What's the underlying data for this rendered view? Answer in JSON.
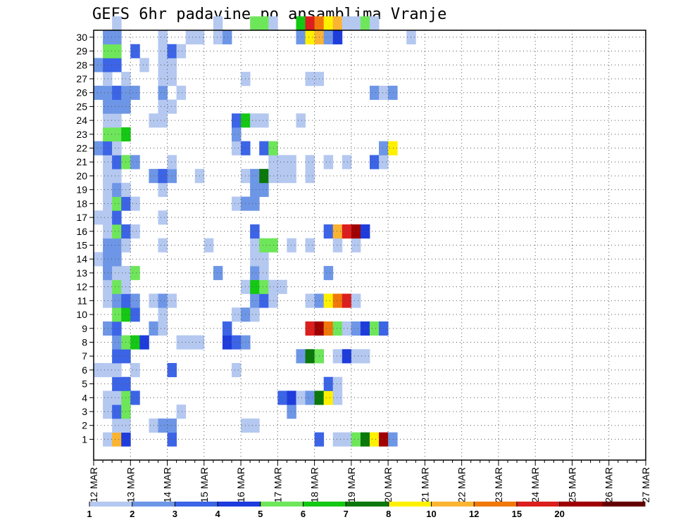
{
  "chart_data": {
    "type": "heatmap",
    "title": "GEFS 6hr padavine po ansamblima Vranje",
    "members": [
      1,
      2,
      3,
      4,
      5,
      6,
      7,
      8,
      9,
      10,
      11,
      12,
      13,
      14,
      15,
      16,
      17,
      18,
      19,
      20,
      21,
      22,
      23,
      24,
      25,
      26,
      27,
      28,
      29,
      30
    ],
    "x_tick_labels": [
      "12 MAR",
      "13 MAR",
      "14 MAR",
      "15 MAR",
      "16 MAR",
      "17 MAR",
      "18 MAR",
      "19 MAR",
      "20 MAR",
      "21 MAR",
      "22 MAR",
      "23 MAR",
      "24 MAR",
      "25 MAR",
      "26 MAR",
      "27 MAR"
    ],
    "steps_per_day": 4,
    "colorbar": {
      "levels": [
        "1",
        "2",
        "3",
        "4",
        "5",
        "6",
        "7",
        "8",
        "10",
        "12",
        "15",
        "20"
      ],
      "colors": [
        "#b4c8f0",
        "#6e96e6",
        "#3c64e6",
        "#1e3cdc",
        "#6ee65a",
        "#14c814",
        "#0a780a",
        "#fff000",
        "#fab432",
        "#f0780a",
        "#dc1e1e",
        "#a00000",
        "#640000"
      ]
    },
    "cells": [
      [
        1,
        1,
        1
      ],
      [
        1,
        2,
        9
      ],
      [
        1,
        3,
        4
      ],
      [
        1,
        8,
        3
      ],
      [
        1,
        24,
        3
      ],
      [
        1,
        26,
        1
      ],
      [
        1,
        27,
        1
      ],
      [
        1,
        28,
        5
      ],
      [
        1,
        29,
        7
      ],
      [
        1,
        30,
        8
      ],
      [
        1,
        31,
        12
      ],
      [
        1,
        32,
        2
      ],
      [
        2,
        2,
        1
      ],
      [
        2,
        3,
        1
      ],
      [
        2,
        6,
        1
      ],
      [
        2,
        7,
        2
      ],
      [
        2,
        8,
        2
      ],
      [
        2,
        16,
        1
      ],
      [
        2,
        17,
        1
      ],
      [
        3,
        1,
        1
      ],
      [
        3,
        2,
        3
      ],
      [
        3,
        3,
        5
      ],
      [
        3,
        9,
        1
      ],
      [
        3,
        21,
        2
      ],
      [
        4,
        1,
        1
      ],
      [
        4,
        2,
        1
      ],
      [
        4,
        3,
        5
      ],
      [
        4,
        4,
        3
      ],
      [
        4,
        20,
        3
      ],
      [
        4,
        21,
        4
      ],
      [
        4,
        22,
        1
      ],
      [
        4,
        23,
        2
      ],
      [
        4,
        24,
        7
      ],
      [
        4,
        25,
        8
      ],
      [
        4,
        26,
        1
      ],
      [
        5,
        2,
        3
      ],
      [
        5,
        3,
        3
      ],
      [
        5,
        25,
        3
      ],
      [
        5,
        26,
        1
      ],
      [
        6,
        0,
        1
      ],
      [
        6,
        1,
        1
      ],
      [
        6,
        2,
        1
      ],
      [
        6,
        4,
        1
      ],
      [
        6,
        8,
        3
      ],
      [
        6,
        15,
        1
      ],
      [
        7,
        2,
        3
      ],
      [
        7,
        3,
        3
      ],
      [
        7,
        22,
        2
      ],
      [
        7,
        23,
        7
      ],
      [
        7,
        24,
        5
      ],
      [
        7,
        26,
        1
      ],
      [
        7,
        27,
        4
      ],
      [
        7,
        28,
        1
      ],
      [
        7,
        29,
        1
      ],
      [
        8,
        2,
        2
      ],
      [
        8,
        3,
        5
      ],
      [
        8,
        4,
        6
      ],
      [
        8,
        5,
        4
      ],
      [
        8,
        9,
        1
      ],
      [
        8,
        10,
        1
      ],
      [
        8,
        11,
        1
      ],
      [
        8,
        14,
        4
      ],
      [
        8,
        15,
        3
      ],
      [
        8,
        16,
        2
      ],
      [
        9,
        1,
        2
      ],
      [
        9,
        2,
        3
      ],
      [
        9,
        6,
        2
      ],
      [
        9,
        7,
        1
      ],
      [
        9,
        14,
        3
      ],
      [
        9,
        23,
        11
      ],
      [
        9,
        24,
        12
      ],
      [
        9,
        25,
        10
      ],
      [
        9,
        26,
        5
      ],
      [
        9,
        27,
        1
      ],
      [
        9,
        28,
        2
      ],
      [
        9,
        29,
        4
      ],
      [
        9,
        30,
        5
      ],
      [
        9,
        31,
        3
      ],
      [
        10,
        2,
        5
      ],
      [
        10,
        3,
        6
      ],
      [
        10,
        4,
        3
      ],
      [
        10,
        7,
        1
      ],
      [
        10,
        15,
        1
      ],
      [
        10,
        16,
        2
      ],
      [
        10,
        17,
        1
      ],
      [
        11,
        1,
        1
      ],
      [
        11,
        2,
        2
      ],
      [
        11,
        3,
        3
      ],
      [
        11,
        4,
        2
      ],
      [
        11,
        6,
        1
      ],
      [
        11,
        7,
        2
      ],
      [
        11,
        8,
        1
      ],
      [
        11,
        17,
        2
      ],
      [
        11,
        18,
        3
      ],
      [
        11,
        19,
        1
      ],
      [
        11,
        23,
        1
      ],
      [
        11,
        24,
        2
      ],
      [
        11,
        25,
        8
      ],
      [
        11,
        26,
        10
      ],
      [
        11,
        27,
        11
      ],
      [
        11,
        28,
        1
      ],
      [
        12,
        1,
        1
      ],
      [
        12,
        2,
        5
      ],
      [
        12,
        3,
        1
      ],
      [
        12,
        16,
        1
      ],
      [
        12,
        17,
        6
      ],
      [
        12,
        18,
        5
      ],
      [
        12,
        19,
        1
      ],
      [
        12,
        20,
        1
      ],
      [
        13,
        1,
        2
      ],
      [
        13,
        2,
        1
      ],
      [
        13,
        3,
        1
      ],
      [
        13,
        4,
        5
      ],
      [
        13,
        13,
        2
      ],
      [
        13,
        17,
        2
      ],
      [
        13,
        18,
        1
      ],
      [
        13,
        25,
        2
      ],
      [
        14,
        0,
        1
      ],
      [
        14,
        1,
        2
      ],
      [
        14,
        2,
        2
      ],
      [
        14,
        17,
        1
      ],
      [
        14,
        18,
        1
      ],
      [
        15,
        1,
        2
      ],
      [
        15,
        2,
        2
      ],
      [
        15,
        3,
        1
      ],
      [
        15,
        7,
        1
      ],
      [
        15,
        12,
        1
      ],
      [
        15,
        17,
        1
      ],
      [
        15,
        18,
        5
      ],
      [
        15,
        19,
        5
      ],
      [
        15,
        21,
        1
      ],
      [
        15,
        23,
        1
      ],
      [
        15,
        26,
        1
      ],
      [
        15,
        28,
        1
      ],
      [
        16,
        1,
        1
      ],
      [
        16,
        2,
        5
      ],
      [
        16,
        3,
        3
      ],
      [
        16,
        4,
        1
      ],
      [
        16,
        17,
        3
      ],
      [
        16,
        25,
        3
      ],
      [
        16,
        26,
        9
      ],
      [
        16,
        27,
        11
      ],
      [
        16,
        28,
        12
      ],
      [
        16,
        29,
        4
      ],
      [
        17,
        0,
        1
      ],
      [
        17,
        1,
        1
      ],
      [
        17,
        2,
        3
      ],
      [
        17,
        7,
        1
      ],
      [
        18,
        1,
        1
      ],
      [
        18,
        2,
        5
      ],
      [
        18,
        3,
        3
      ],
      [
        18,
        4,
        1
      ],
      [
        18,
        15,
        1
      ],
      [
        18,
        16,
        2
      ],
      [
        18,
        17,
        2
      ],
      [
        19,
        1,
        1
      ],
      [
        19,
        2,
        2
      ],
      [
        19,
        3,
        1
      ],
      [
        19,
        7,
        1
      ],
      [
        19,
        17,
        2
      ],
      [
        19,
        18,
        2
      ],
      [
        20,
        1,
        1
      ],
      [
        20,
        2,
        1
      ],
      [
        20,
        6,
        2
      ],
      [
        20,
        7,
        3
      ],
      [
        20,
        8,
        2
      ],
      [
        20,
        11,
        1
      ],
      [
        20,
        16,
        1
      ],
      [
        20,
        17,
        2
      ],
      [
        20,
        18,
        7
      ],
      [
        20,
        19,
        1
      ],
      [
        20,
        20,
        1
      ],
      [
        20,
        21,
        1
      ],
      [
        20,
        23,
        1
      ],
      [
        21,
        1,
        1
      ],
      [
        21,
        2,
        3
      ],
      [
        21,
        3,
        5
      ],
      [
        21,
        4,
        2
      ],
      [
        21,
        8,
        1
      ],
      [
        21,
        19,
        1
      ],
      [
        21,
        20,
        1
      ],
      [
        21,
        21,
        1
      ],
      [
        21,
        23,
        1
      ],
      [
        21,
        25,
        1
      ],
      [
        21,
        27,
        1
      ],
      [
        21,
        30,
        3
      ],
      [
        21,
        31,
        1
      ],
      [
        22,
        0,
        2
      ],
      [
        22,
        1,
        3
      ],
      [
        22,
        2,
        1
      ],
      [
        22,
        15,
        1
      ],
      [
        22,
        16,
        3
      ],
      [
        22,
        18,
        3
      ],
      [
        22,
        19,
        5
      ],
      [
        22,
        31,
        2
      ],
      [
        22,
        32,
        8
      ],
      [
        23,
        1,
        5
      ],
      [
        23,
        2,
        5
      ],
      [
        23,
        3,
        6
      ],
      [
        23,
        15,
        2
      ],
      [
        24,
        1,
        1
      ],
      [
        24,
        2,
        1
      ],
      [
        24,
        6,
        1
      ],
      [
        24,
        7,
        1
      ],
      [
        24,
        15,
        3
      ],
      [
        24,
        16,
        6
      ],
      [
        24,
        17,
        1
      ],
      [
        24,
        18,
        1
      ],
      [
        24,
        22,
        1
      ],
      [
        25,
        1,
        2
      ],
      [
        25,
        2,
        2
      ],
      [
        25,
        3,
        2
      ],
      [
        25,
        7,
        1
      ],
      [
        25,
        8,
        1
      ],
      [
        26,
        0,
        2
      ],
      [
        26,
        1,
        2
      ],
      [
        26,
        2,
        3
      ],
      [
        26,
        3,
        2
      ],
      [
        26,
        4,
        2
      ],
      [
        26,
        7,
        2
      ],
      [
        26,
        9,
        1
      ],
      [
        26,
        30,
        2
      ],
      [
        26,
        31,
        1
      ],
      [
        26,
        32,
        2
      ],
      [
        27,
        1,
        1
      ],
      [
        27,
        3,
        1
      ],
      [
        27,
        7,
        1
      ],
      [
        27,
        8,
        1
      ],
      [
        27,
        16,
        1
      ],
      [
        27,
        23,
        1
      ],
      [
        27,
        24,
        1
      ],
      [
        28,
        0,
        2
      ],
      [
        28,
        1,
        3
      ],
      [
        28,
        2,
        3
      ],
      [
        28,
        5,
        1
      ],
      [
        28,
        7,
        1
      ],
      [
        28,
        8,
        1
      ],
      [
        29,
        1,
        5
      ],
      [
        29,
        2,
        5
      ],
      [
        29,
        4,
        3
      ],
      [
        29,
        7,
        1
      ],
      [
        29,
        8,
        3
      ],
      [
        29,
        9,
        1
      ],
      [
        30,
        1,
        2
      ],
      [
        30,
        2,
        2
      ],
      [
        30,
        7,
        1
      ],
      [
        30,
        10,
        1
      ],
      [
        30,
        11,
        1
      ],
      [
        30,
        13,
        1
      ],
      [
        30,
        14,
        2
      ],
      [
        30,
        22,
        2
      ],
      [
        30,
        23,
        8
      ],
      [
        30,
        24,
        9
      ],
      [
        30,
        25,
        2
      ],
      [
        30,
        26,
        4
      ],
      [
        30,
        34,
        1
      ],
      [
        31,
        2,
        1
      ],
      [
        31,
        13,
        1
      ],
      [
        31,
        17,
        5
      ],
      [
        31,
        18,
        5
      ],
      [
        31,
        19,
        1
      ],
      [
        31,
        22,
        6
      ],
      [
        31,
        23,
        11
      ],
      [
        31,
        24,
        10
      ],
      [
        31,
        25,
        8
      ],
      [
        31,
        26,
        9
      ],
      [
        31,
        27,
        1
      ],
      [
        31,
        28,
        1
      ],
      [
        31,
        29,
        5
      ],
      [
        31,
        30,
        1
      ]
    ]
  }
}
